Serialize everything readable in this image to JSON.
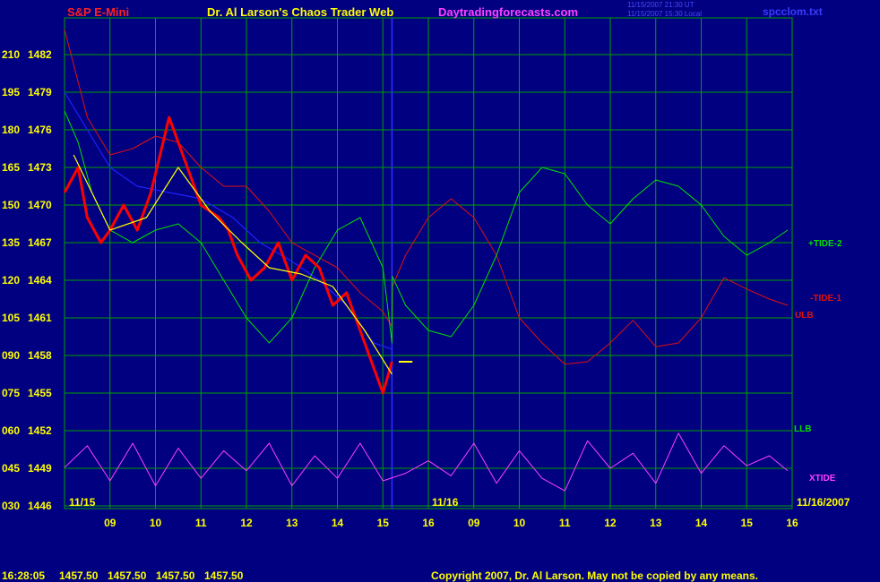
{
  "header": {
    "symbol": "S&P E-Mini",
    "title": "Dr. Al Larson's Chaos Trader Web",
    "site": "Daytradingforecasts.com",
    "ut_time": "11/15/2007 21:30 UT",
    "local_time": "11/15/2007 15:30 Local",
    "file": "spcclom.txt"
  },
  "footer": {
    "clock": "16:28:05",
    "quote1": "1457.50",
    "quote2": "1457.50",
    "quote3": "1457.50",
    "quote4": "1457.50",
    "copyright": "Copyright 2007, Dr. Al Larson. May not be copied by any means."
  },
  "dates": {
    "left": "11/15",
    "middle": "11/16",
    "right": "11/16/2007"
  },
  "labels": {
    "tide2": "+TIDE-2",
    "tide1": "-TIDE-1",
    "ulb": "ULB",
    "llb": "LLB",
    "xtide": "XTIDE"
  },
  "colors": {
    "background": "#000080",
    "grid": "#00a000",
    "price": "#ff0000",
    "price_highlight": "#ffffff",
    "ulb": "#e01010",
    "llb": "#00e000",
    "xtide": "#ff40ff",
    "moving_avg": "#ffff00",
    "slow_curve": "#2020ff",
    "axis_text": "#ffff00",
    "title_text": "#ffff00",
    "site_text": "#ff40ff",
    "symbol_text": "#ff2020",
    "copyright_text": "#ffff00"
  },
  "chart_data": {
    "type": "line",
    "title": "S&P E-Mini",
    "y_labels": [
      {
        "osc": "210",
        "price": "1482"
      },
      {
        "osc": "195",
        "price": "1479"
      },
      {
        "osc": "180",
        "price": "1476"
      },
      {
        "osc": "165",
        "price": "1473"
      },
      {
        "osc": "150",
        "price": "1470"
      },
      {
        "osc": "135",
        "price": "1467"
      },
      {
        "osc": "120",
        "price": "1464"
      },
      {
        "osc": "105",
        "price": "1461"
      },
      {
        "osc": "090",
        "price": "1458"
      },
      {
        "osc": "075",
        "price": "1455"
      },
      {
        "osc": "060",
        "price": "1452"
      },
      {
        "osc": "045",
        "price": "1449"
      },
      {
        "osc": "030",
        "price": "1446"
      }
    ],
    "ylim_price": [
      1446,
      1482
    ],
    "ylim_osc": [
      30,
      210
    ],
    "hour_labels": [
      "09",
      "10",
      "11",
      "12",
      "13",
      "14",
      "15",
      "16",
      "09",
      "10",
      "11",
      "12",
      "13",
      "14",
      "15",
      "16"
    ],
    "xlim": [
      0,
      16
    ],
    "grid": true,
    "last_price": 1457.5,
    "series": [
      {
        "name": "ULB",
        "points": [
          [
            0,
            1484
          ],
          [
            0.5,
            1477
          ],
          [
            1,
            1474
          ],
          [
            1.5,
            1474.5
          ],
          [
            2,
            1475.5
          ],
          [
            2.5,
            1475
          ],
          [
            3,
            1473
          ],
          [
            3.5,
            1471.5
          ],
          [
            4,
            1471.5
          ],
          [
            4.5,
            1469.5
          ],
          [
            5,
            1467
          ],
          [
            5.5,
            1466
          ],
          [
            6,
            1465
          ],
          [
            6.5,
            1463
          ],
          [
            7,
            1461.5
          ],
          [
            7.2,
            1460.3
          ],
          [
            7.21,
            1463.5
          ],
          [
            7.5,
            1466
          ],
          [
            8,
            1469
          ],
          [
            8.5,
            1470.5
          ],
          [
            9,
            1469
          ],
          [
            9.5,
            1466
          ],
          [
            10,
            1461
          ],
          [
            10.5,
            1459
          ],
          [
            11,
            1457.3
          ],
          [
            11.5,
            1457.5
          ],
          [
            12,
            1459
          ],
          [
            12.5,
            1460.8
          ],
          [
            13,
            1458.7
          ],
          [
            13.5,
            1459
          ],
          [
            14,
            1461
          ],
          [
            14.5,
            1464.2
          ],
          [
            15,
            1463.3
          ],
          [
            15.5,
            1462.5
          ],
          [
            15.9,
            1462
          ]
        ]
      },
      {
        "name": "LLB",
        "points": [
          [
            0,
            1477.5
          ],
          [
            0.3,
            1475
          ],
          [
            0.6,
            1471
          ],
          [
            1,
            1468
          ],
          [
            1.5,
            1467
          ],
          [
            2,
            1468
          ],
          [
            2.5,
            1468.5
          ],
          [
            3,
            1467
          ],
          [
            3.5,
            1464
          ],
          [
            4,
            1461
          ],
          [
            4.5,
            1459
          ],
          [
            5,
            1461
          ],
          [
            5.5,
            1465
          ],
          [
            6,
            1468
          ],
          [
            6.5,
            1469
          ],
          [
            7,
            1465
          ],
          [
            7.2,
            1459
          ],
          [
            7.21,
            1464.3
          ],
          [
            7.5,
            1462
          ],
          [
            8,
            1460
          ],
          [
            8.5,
            1459.5
          ],
          [
            9,
            1462
          ],
          [
            9.5,
            1466
          ],
          [
            10,
            1471
          ],
          [
            10.5,
            1473
          ],
          [
            11,
            1472.5
          ],
          [
            11.5,
            1470
          ],
          [
            12,
            1468.5
          ],
          [
            12.5,
            1470.5
          ],
          [
            13,
            1472
          ],
          [
            13.5,
            1471.5
          ],
          [
            14,
            1470
          ],
          [
            14.5,
            1467.5
          ],
          [
            15,
            1466
          ],
          [
            15.5,
            1467
          ],
          [
            15.9,
            1468
          ]
        ]
      },
      {
        "name": "XTIDE",
        "points": [
          [
            0,
            45.3
          ],
          [
            0.5,
            54
          ],
          [
            1,
            40
          ],
          [
            1.5,
            55
          ],
          [
            2,
            38
          ],
          [
            2.5,
            53
          ],
          [
            3,
            41
          ],
          [
            3.5,
            52
          ],
          [
            4,
            44
          ],
          [
            4.5,
            55
          ],
          [
            5,
            38
          ],
          [
            5.5,
            50
          ],
          [
            6,
            41
          ],
          [
            6.5,
            55
          ],
          [
            7,
            40
          ],
          [
            7.5,
            43
          ],
          [
            8,
            48
          ],
          [
            8.5,
            42
          ],
          [
            9,
            55
          ],
          [
            9.5,
            39
          ],
          [
            10,
            52
          ],
          [
            10.5,
            41
          ],
          [
            11,
            36
          ],
          [
            11.5,
            56
          ],
          [
            12,
            45
          ],
          [
            12.5,
            51
          ],
          [
            13,
            39
          ],
          [
            13.5,
            59
          ],
          [
            14,
            43
          ],
          [
            14.5,
            54
          ],
          [
            15,
            46
          ],
          [
            15.5,
            50
          ],
          [
            15.9,
            44
          ]
        ]
      },
      {
        "name": "Price",
        "points": [
          [
            0,
            1471
          ],
          [
            0.3,
            1473
          ],
          [
            0.5,
            1469
          ],
          [
            0.8,
            1467
          ],
          [
            1,
            1468
          ],
          [
            1.3,
            1470
          ],
          [
            1.6,
            1468
          ],
          [
            1.9,
            1471
          ],
          [
            2.1,
            1474
          ],
          [
            2.3,
            1477
          ],
          [
            2.6,
            1474
          ],
          [
            3,
            1470
          ],
          [
            3.4,
            1469
          ],
          [
            3.6,
            1468
          ],
          [
            3.8,
            1466
          ],
          [
            4.1,
            1464
          ],
          [
            4.4,
            1465
          ],
          [
            4.7,
            1467
          ],
          [
            5,
            1464
          ],
          [
            5.3,
            1466
          ],
          [
            5.6,
            1465
          ],
          [
            5.9,
            1462
          ],
          [
            6.2,
            1463
          ],
          [
            6.4,
            1461
          ],
          [
            6.7,
            1458
          ],
          [
            7,
            1455
          ],
          [
            7.2,
            1457.5
          ]
        ]
      },
      {
        "name": "Moving average",
        "points": [
          [
            0.2,
            1474
          ],
          [
            1,
            1468
          ],
          [
            1.8,
            1469
          ],
          [
            2.5,
            1473
          ],
          [
            3.2,
            1469.5
          ],
          [
            3.9,
            1467
          ],
          [
            4.5,
            1465
          ],
          [
            5.2,
            1464.5
          ],
          [
            5.9,
            1463.5
          ],
          [
            6.6,
            1460
          ],
          [
            7.2,
            1456.5
          ]
        ]
      },
      {
        "name": "Slow average",
        "points": [
          [
            0,
            1479
          ],
          [
            0.5,
            1476
          ],
          [
            1,
            1473
          ],
          [
            1.6,
            1471.5
          ],
          [
            2.3,
            1471
          ],
          [
            3,
            1470.5
          ],
          [
            3.7,
            1469
          ],
          [
            4.3,
            1467
          ],
          [
            5,
            1465.5
          ],
          [
            5.6,
            1464
          ],
          [
            6.2,
            1462
          ],
          [
            6.8,
            1459
          ],
          [
            7.2,
            1458.5
          ]
        ]
      }
    ]
  }
}
